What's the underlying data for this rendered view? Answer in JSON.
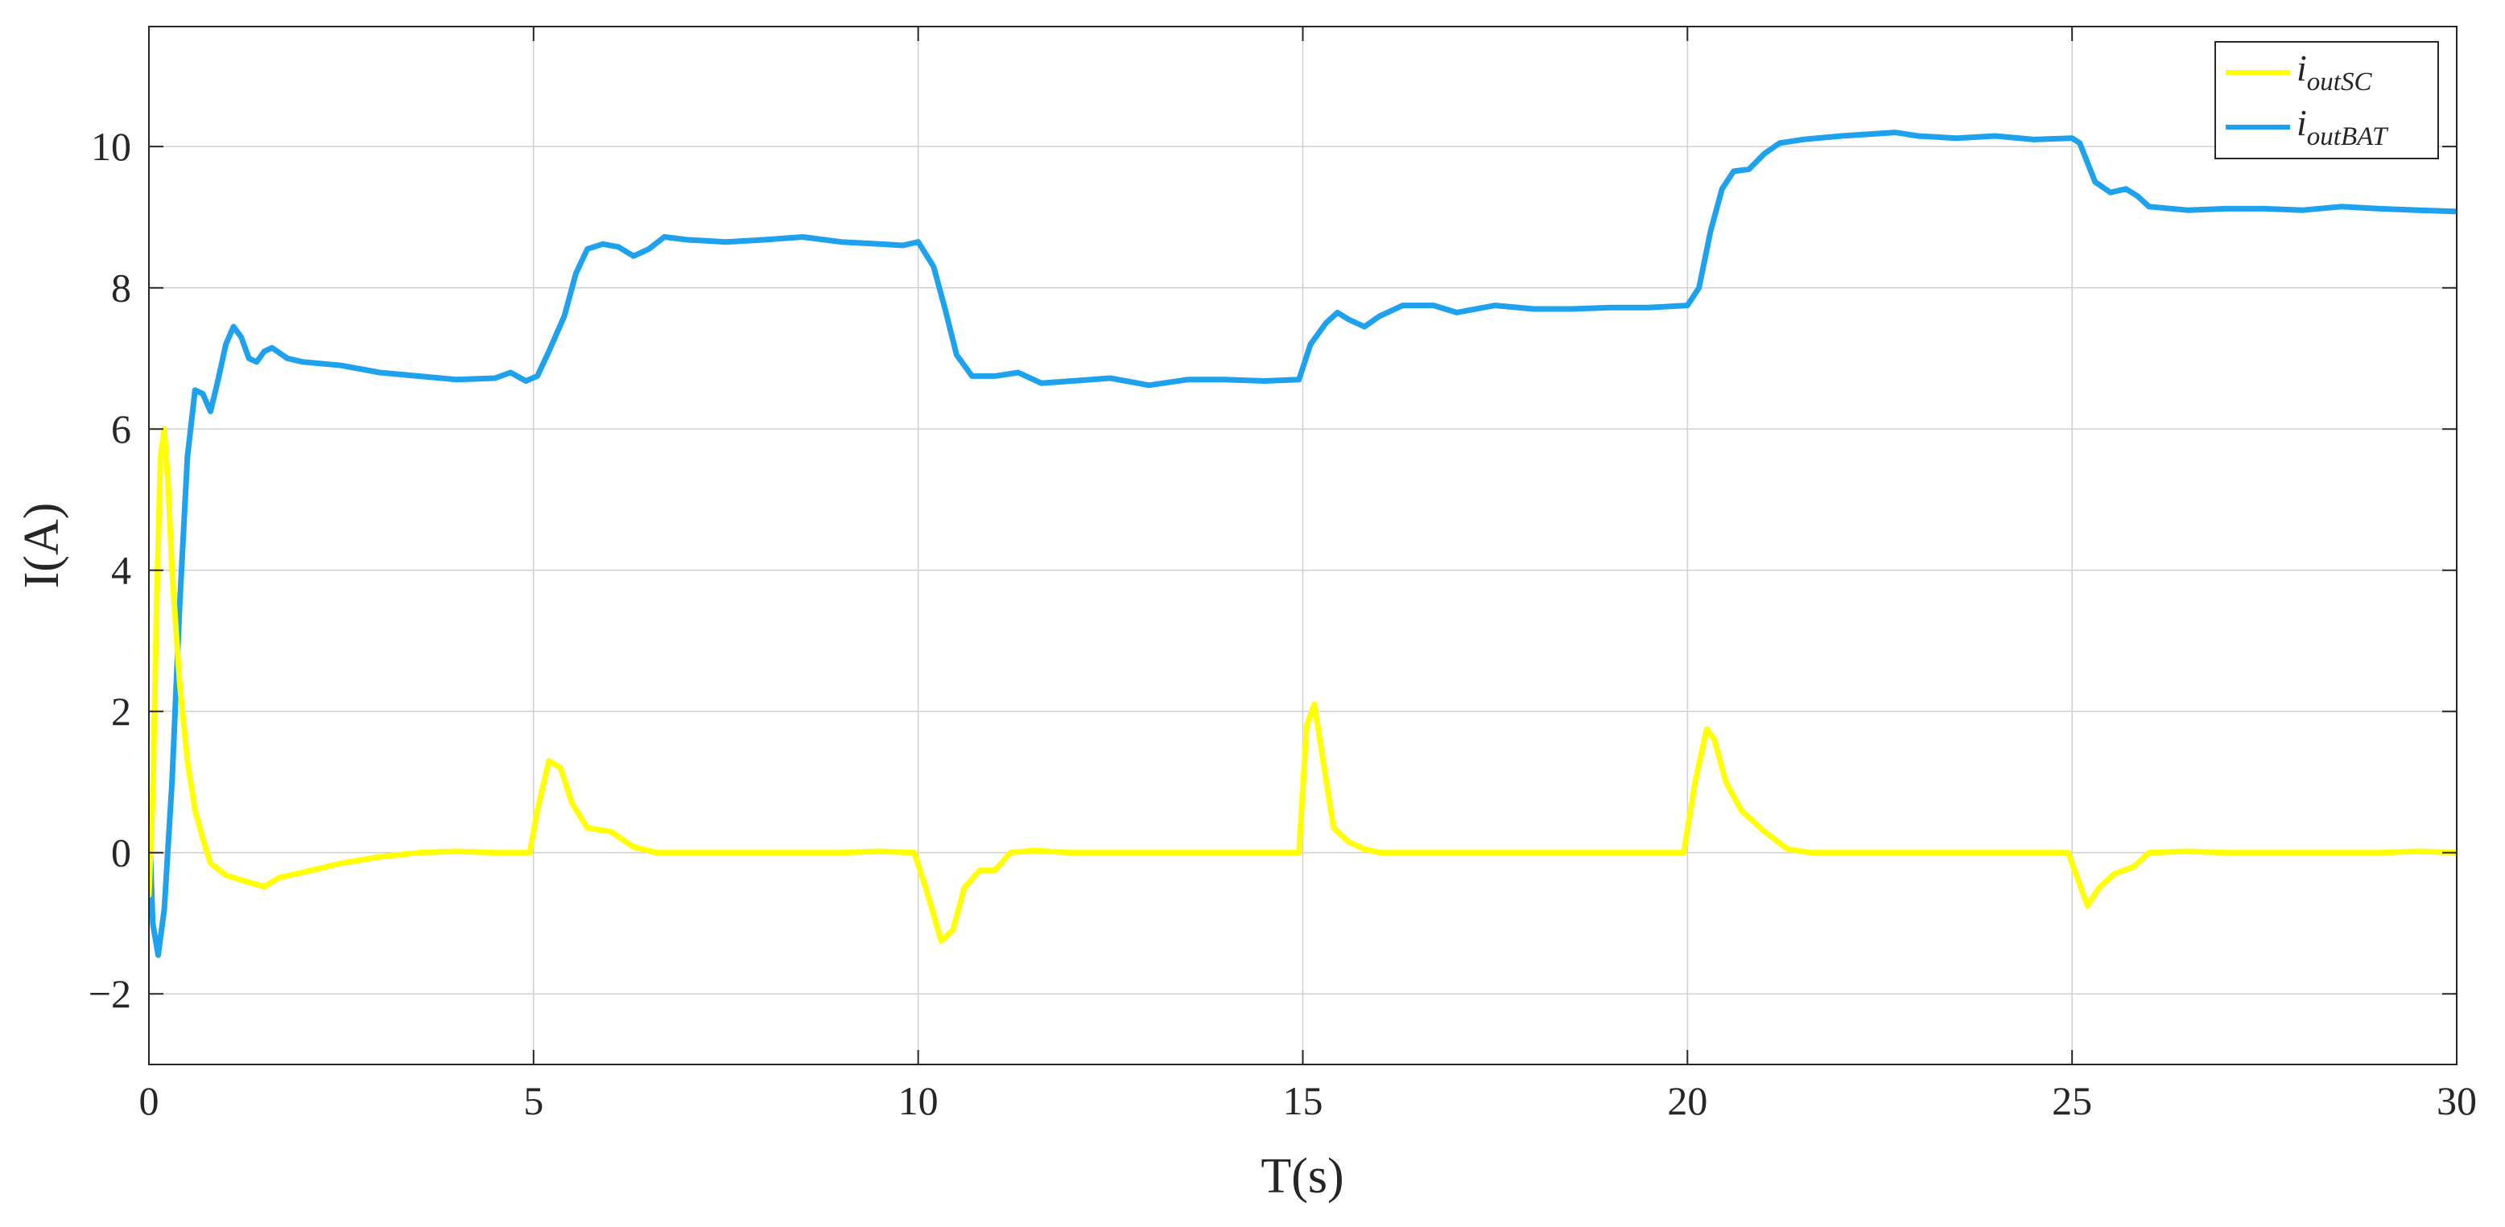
{
  "chart_data": {
    "type": "line",
    "xlabel": "T(s)",
    "ylabel": "I(A)",
    "xlim": [
      0,
      30
    ],
    "ylim": [
      -3,
      11.7
    ],
    "x_ticks": [
      0,
      5,
      10,
      15,
      20,
      25,
      30
    ],
    "y_ticks": [
      -2,
      0,
      2,
      4,
      6,
      8,
      10
    ],
    "y_tick_labels": [
      "−2",
      "0",
      "2",
      "4",
      "6",
      "8",
      "10"
    ],
    "grid": true,
    "legend_position": "top-right",
    "series": [
      {
        "name": "i_outSC",
        "legend_main": "i",
        "legend_sub": "outSC",
        "color": "#FFFF00",
        "points": [
          [
            0,
            -0.6
          ],
          [
            0.05,
            0.8
          ],
          [
            0.1,
            3.5
          ],
          [
            0.15,
            5.6
          ],
          [
            0.2,
            6.0
          ],
          [
            0.25,
            5.2
          ],
          [
            0.3,
            4.0
          ],
          [
            0.4,
            2.4
          ],
          [
            0.5,
            1.3
          ],
          [
            0.6,
            0.6
          ],
          [
            0.7,
            0.2
          ],
          [
            0.8,
            -0.15
          ],
          [
            1.0,
            -0.32
          ],
          [
            1.3,
            -0.42
          ],
          [
            1.5,
            -0.48
          ],
          [
            1.7,
            -0.35
          ],
          [
            2.0,
            -0.28
          ],
          [
            2.5,
            -0.15
          ],
          [
            3.0,
            -0.06
          ],
          [
            3.5,
            0.0
          ],
          [
            4.0,
            0.02
          ],
          [
            4.5,
            0.0
          ],
          [
            4.95,
            0.0
          ],
          [
            5.05,
            0.6
          ],
          [
            5.2,
            1.3
          ],
          [
            5.35,
            1.2
          ],
          [
            5.5,
            0.7
          ],
          [
            5.7,
            0.35
          ],
          [
            6.0,
            0.3
          ],
          [
            6.3,
            0.08
          ],
          [
            6.6,
            0.0
          ],
          [
            7.0,
            0.0
          ],
          [
            8.0,
            0.0
          ],
          [
            9.0,
            0.0
          ],
          [
            9.5,
            0.02
          ],
          [
            9.95,
            0.0
          ],
          [
            10.1,
            -0.5
          ],
          [
            10.3,
            -1.25
          ],
          [
            10.45,
            -1.1
          ],
          [
            10.6,
            -0.5
          ],
          [
            10.8,
            -0.25
          ],
          [
            11.0,
            -0.25
          ],
          [
            11.2,
            0.0
          ],
          [
            11.5,
            0.03
          ],
          [
            12.0,
            0.0
          ],
          [
            13.0,
            0.0
          ],
          [
            14.0,
            0.0
          ],
          [
            14.95,
            0.0
          ],
          [
            15.05,
            1.8
          ],
          [
            15.15,
            2.1
          ],
          [
            15.25,
            1.4
          ],
          [
            15.4,
            0.35
          ],
          [
            15.6,
            0.15
          ],
          [
            15.8,
            0.05
          ],
          [
            16.0,
            0.0
          ],
          [
            17.0,
            0.0
          ],
          [
            18.0,
            0.0
          ],
          [
            19.0,
            0.0
          ],
          [
            19.95,
            0.0
          ],
          [
            20.1,
            1.0
          ],
          [
            20.25,
            1.75
          ],
          [
            20.35,
            1.6
          ],
          [
            20.5,
            1.0
          ],
          [
            20.7,
            0.6
          ],
          [
            21.0,
            0.3
          ],
          [
            21.3,
            0.05
          ],
          [
            21.6,
            0.0
          ],
          [
            22.0,
            0.0
          ],
          [
            23.0,
            0.0
          ],
          [
            24.0,
            0.0
          ],
          [
            24.95,
            0.0
          ],
          [
            25.05,
            -0.3
          ],
          [
            25.2,
            -0.75
          ],
          [
            25.35,
            -0.5
          ],
          [
            25.55,
            -0.3
          ],
          [
            25.8,
            -0.2
          ],
          [
            26.0,
            0.0
          ],
          [
            26.5,
            0.02
          ],
          [
            27.0,
            0.0
          ],
          [
            28.0,
            0.0
          ],
          [
            29.0,
            0.0
          ],
          [
            29.5,
            0.02
          ],
          [
            30.0,
            0.0
          ]
        ]
      },
      {
        "name": "i_outBAT",
        "legend_main": "i",
        "legend_sub": "outBAT",
        "color": "#1EA2EE",
        "points": [
          [
            0,
            0.6
          ],
          [
            0.05,
            -1.0
          ],
          [
            0.12,
            -1.45
          ],
          [
            0.2,
            -0.8
          ],
          [
            0.3,
            1.0
          ],
          [
            0.4,
            3.5
          ],
          [
            0.5,
            5.6
          ],
          [
            0.6,
            6.55
          ],
          [
            0.7,
            6.5
          ],
          [
            0.8,
            6.25
          ],
          [
            0.9,
            6.7
          ],
          [
            1.0,
            7.2
          ],
          [
            1.1,
            7.45
          ],
          [
            1.2,
            7.3
          ],
          [
            1.3,
            7.0
          ],
          [
            1.4,
            6.95
          ],
          [
            1.5,
            7.1
          ],
          [
            1.6,
            7.15
          ],
          [
            1.8,
            7.0
          ],
          [
            2.0,
            6.95
          ],
          [
            2.5,
            6.9
          ],
          [
            3.0,
            6.8
          ],
          [
            3.5,
            6.75
          ],
          [
            4.0,
            6.7
          ],
          [
            4.5,
            6.72
          ],
          [
            4.7,
            6.8
          ],
          [
            4.9,
            6.68
          ],
          [
            5.05,
            6.75
          ],
          [
            5.2,
            7.1
          ],
          [
            5.4,
            7.6
          ],
          [
            5.55,
            8.2
          ],
          [
            5.7,
            8.55
          ],
          [
            5.9,
            8.62
          ],
          [
            6.1,
            8.58
          ],
          [
            6.3,
            8.45
          ],
          [
            6.5,
            8.55
          ],
          [
            6.7,
            8.72
          ],
          [
            7.0,
            8.68
          ],
          [
            7.5,
            8.65
          ],
          [
            8.0,
            8.68
          ],
          [
            8.5,
            8.72
          ],
          [
            9.0,
            8.65
          ],
          [
            9.5,
            8.62
          ],
          [
            9.8,
            8.6
          ],
          [
            10.0,
            8.65
          ],
          [
            10.2,
            8.3
          ],
          [
            10.35,
            7.7
          ],
          [
            10.5,
            7.05
          ],
          [
            10.7,
            6.75
          ],
          [
            11.0,
            6.75
          ],
          [
            11.3,
            6.8
          ],
          [
            11.6,
            6.65
          ],
          [
            12.0,
            6.68
          ],
          [
            12.5,
            6.72
          ],
          [
            13.0,
            6.62
          ],
          [
            13.5,
            6.7
          ],
          [
            14.0,
            6.7
          ],
          [
            14.5,
            6.68
          ],
          [
            14.95,
            6.7
          ],
          [
            15.1,
            7.2
          ],
          [
            15.3,
            7.5
          ],
          [
            15.45,
            7.65
          ],
          [
            15.6,
            7.55
          ],
          [
            15.8,
            7.45
          ],
          [
            16.0,
            7.6
          ],
          [
            16.3,
            7.75
          ],
          [
            16.7,
            7.75
          ],
          [
            17.0,
            7.65
          ],
          [
            17.5,
            7.75
          ],
          [
            18.0,
            7.7
          ],
          [
            18.5,
            7.7
          ],
          [
            19.0,
            7.72
          ],
          [
            19.5,
            7.72
          ],
          [
            20.0,
            7.75
          ],
          [
            20.15,
            8.0
          ],
          [
            20.3,
            8.8
          ],
          [
            20.45,
            9.4
          ],
          [
            20.6,
            9.65
          ],
          [
            20.8,
            9.68
          ],
          [
            21.0,
            9.9
          ],
          [
            21.2,
            10.05
          ],
          [
            21.5,
            10.1
          ],
          [
            22.0,
            10.15
          ],
          [
            22.7,
            10.2
          ],
          [
            23.0,
            10.15
          ],
          [
            23.5,
            10.12
          ],
          [
            24.0,
            10.15
          ],
          [
            24.5,
            10.1
          ],
          [
            25.0,
            10.12
          ],
          [
            25.1,
            10.05
          ],
          [
            25.3,
            9.5
          ],
          [
            25.5,
            9.35
          ],
          [
            25.7,
            9.4
          ],
          [
            25.85,
            9.3
          ],
          [
            26.0,
            9.15
          ],
          [
            26.5,
            9.1
          ],
          [
            27.0,
            9.12
          ],
          [
            27.5,
            9.12
          ],
          [
            28.0,
            9.1
          ],
          [
            28.5,
            9.15
          ],
          [
            29.0,
            9.12
          ],
          [
            29.5,
            9.1
          ],
          [
            30.0,
            9.08
          ]
        ]
      }
    ]
  }
}
